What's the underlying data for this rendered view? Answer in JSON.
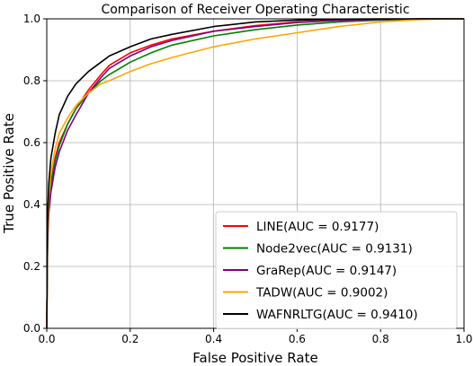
{
  "chart_data": {
    "type": "line",
    "title": "Comparison of Receiver Operating Characteristic",
    "xlabel": "False Positive Rate",
    "ylabel": "True Positive Rate",
    "xlim": [
      0,
      1
    ],
    "ylim": [
      0,
      1
    ],
    "xticks": [
      "0.0",
      "0.2",
      "0.4",
      "0.6",
      "0.8",
      "1.0"
    ],
    "yticks": [
      "0.0",
      "0.2",
      "0.4",
      "0.6",
      "0.8",
      "1.0"
    ],
    "grid": true,
    "legend_position": "lower-right",
    "series": [
      {
        "name": "LINE(AUC = 0.9177)",
        "color": "#ff0000",
        "x": [
          0,
          0.002,
          0.005,
          0.01,
          0.02,
          0.03,
          0.05,
          0.07,
          0.1,
          0.13,
          0.15,
          0.2,
          0.25,
          0.3,
          0.4,
          0.5,
          0.6,
          0.7,
          0.8,
          0.9,
          1.0
        ],
        "y": [
          0,
          0.3,
          0.4,
          0.47,
          0.55,
          0.6,
          0.66,
          0.71,
          0.77,
          0.82,
          0.85,
          0.89,
          0.915,
          0.935,
          0.96,
          0.978,
          0.99,
          0.995,
          0.998,
          1.0,
          1.0
        ]
      },
      {
        "name": "Node2vec(AUC = 0.9131)",
        "color": "#008000",
        "x": [
          0,
          0.002,
          0.005,
          0.01,
          0.02,
          0.03,
          0.05,
          0.07,
          0.1,
          0.13,
          0.15,
          0.2,
          0.25,
          0.3,
          0.4,
          0.5,
          0.6,
          0.7,
          0.8,
          0.9,
          1.0
        ],
        "y": [
          0,
          0.3,
          0.4,
          0.46,
          0.54,
          0.59,
          0.66,
          0.71,
          0.76,
          0.8,
          0.82,
          0.86,
          0.89,
          0.915,
          0.945,
          0.965,
          0.98,
          0.99,
          0.996,
          1.0,
          1.0
        ]
      },
      {
        "name": "GraRep(AUC = 0.9147)",
        "color": "#800080",
        "x": [
          0,
          0.002,
          0.005,
          0.01,
          0.02,
          0.03,
          0.05,
          0.07,
          0.1,
          0.13,
          0.15,
          0.2,
          0.25,
          0.3,
          0.4,
          0.5,
          0.6,
          0.7,
          0.8,
          0.9,
          1.0
        ],
        "y": [
          0,
          0.28,
          0.37,
          0.44,
          0.52,
          0.57,
          0.64,
          0.69,
          0.76,
          0.81,
          0.84,
          0.88,
          0.91,
          0.93,
          0.96,
          0.975,
          0.988,
          0.995,
          0.998,
          1.0,
          1.0
        ]
      },
      {
        "name": "TADW(AUC = 0.9002)",
        "color": "#ffa500",
        "x": [
          0,
          0.002,
          0.005,
          0.01,
          0.02,
          0.03,
          0.05,
          0.07,
          0.1,
          0.13,
          0.15,
          0.2,
          0.25,
          0.3,
          0.4,
          0.5,
          0.6,
          0.7,
          0.8,
          0.9,
          1.0
        ],
        "y": [
          0,
          0.3,
          0.42,
          0.5,
          0.58,
          0.63,
          0.68,
          0.72,
          0.76,
          0.79,
          0.8,
          0.83,
          0.855,
          0.875,
          0.91,
          0.935,
          0.955,
          0.975,
          0.99,
          0.998,
          1.0
        ]
      },
      {
        "name": "WAFNRLTG(AUC = 0.9410)",
        "color": "#000000",
        "x": [
          0,
          0.002,
          0.005,
          0.01,
          0.02,
          0.03,
          0.05,
          0.07,
          0.1,
          0.13,
          0.15,
          0.2,
          0.25,
          0.3,
          0.4,
          0.5,
          0.6,
          0.7,
          0.8,
          0.9,
          1.0
        ],
        "y": [
          0,
          0.35,
          0.47,
          0.55,
          0.63,
          0.69,
          0.75,
          0.79,
          0.83,
          0.86,
          0.88,
          0.91,
          0.935,
          0.95,
          0.975,
          0.99,
          0.996,
          0.999,
          1.0,
          1.0,
          1.0
        ]
      }
    ]
  }
}
